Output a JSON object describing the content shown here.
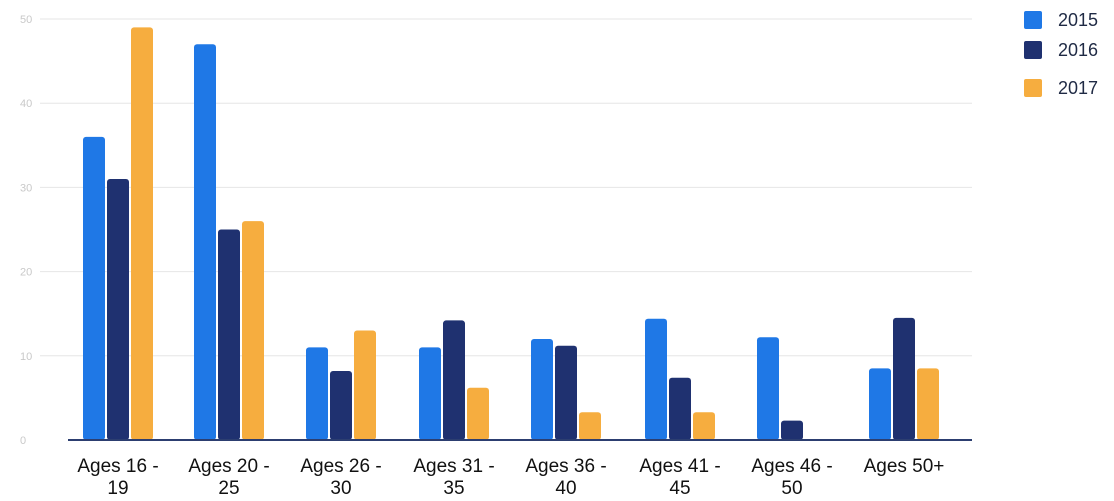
{
  "chart_data": {
    "type": "bar",
    "title": "",
    "xlabel": "",
    "ylabel": "",
    "categories": [
      [
        "Ages 16 -",
        "19"
      ],
      [
        "Ages 20 -",
        "25"
      ],
      [
        "Ages 26 -",
        "30"
      ],
      [
        "Ages 31 -",
        "35"
      ],
      [
        "Ages 36 -",
        "40"
      ],
      [
        "Ages 41 -",
        "45"
      ],
      [
        "Ages 46 -",
        "50"
      ],
      [
        "Ages 50+"
      ]
    ],
    "series": [
      {
        "name": "2015",
        "color": "#1f78e6",
        "values": [
          36,
          47,
          11,
          11,
          12,
          14.4,
          12.2,
          8.5
        ]
      },
      {
        "name": "2016",
        "color": "#1f3170",
        "values": [
          31,
          25,
          8.2,
          14.2,
          11.2,
          7.4,
          2.3,
          14.5
        ]
      },
      {
        "name": "2017",
        "color": "#f6ad3f",
        "values": [
          49,
          26,
          13,
          6.2,
          3.3,
          3.3,
          0,
          8.5
        ]
      }
    ],
    "yticks": [
      0,
      10,
      20,
      30,
      40,
      50
    ],
    "ylim": [
      0,
      50
    ],
    "grid": true,
    "legend_position": "top-right"
  }
}
